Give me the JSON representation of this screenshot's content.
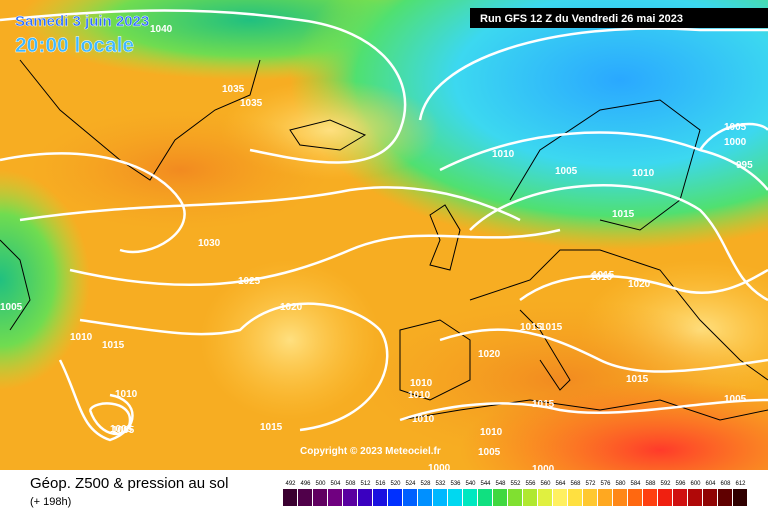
{
  "header": {
    "date": "Samedi 3 juin 2023",
    "time": "20:00 locale",
    "run": "Run GFS 12 Z du Vendredi 26 mai 2023"
  },
  "footer": {
    "title": "Géop. Z500 & pression au sol",
    "lead": "(+ 198h)",
    "copyright": "Copyright © 2023 Meteociel.fr"
  },
  "colorbar": {
    "labels": [
      492,
      496,
      500,
      504,
      508,
      512,
      516,
      520,
      524,
      528,
      532,
      536,
      540,
      544,
      548,
      552,
      556,
      560,
      564,
      568,
      572,
      576,
      580,
      584,
      588,
      592,
      596,
      600,
      604,
      608,
      612
    ]
  },
  "isobar_labels": [
    1040,
    1035,
    1035,
    1030,
    1025,
    1020,
    1015,
    1010,
    1010,
    1005,
    1005,
    1010,
    1005,
    1015,
    1010,
    1005,
    1000,
    995,
    1005,
    1010,
    1015,
    1020,
    1020,
    1015,
    1015,
    1015,
    1010,
    1010,
    1015,
    1010,
    1005,
    1000,
    1000,
    1015,
    1010,
    1005
  ]
}
